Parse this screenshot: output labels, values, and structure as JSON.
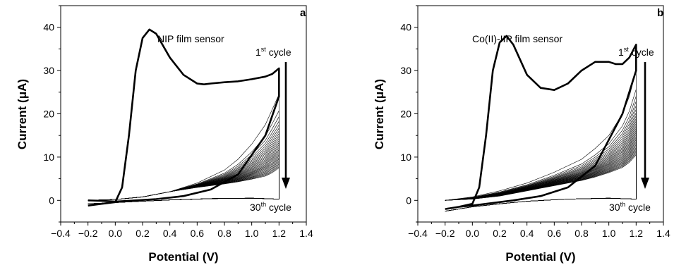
{
  "chart_data": [
    {
      "type": "line",
      "panel_label": "a",
      "title": "NIP film sensor",
      "xlabel": "Potential (V)",
      "ylabel": "Current (μA)",
      "xlim": [
        -0.4,
        1.4
      ],
      "ylim": [
        -5,
        45
      ],
      "x_ticks": [
        "−0.4",
        "−0.2",
        "0.0",
        "0.2",
        "0.4",
        "0.6",
        "0.8",
        "1.0",
        "1.2",
        "1.4"
      ],
      "y_ticks": [
        "0",
        "10",
        "20",
        "30",
        "40"
      ],
      "annotation_top": {
        "number": "1",
        "sup": "st",
        "word": " cycle"
      },
      "annotation_bottom": {
        "number": "30",
        "sup": "th",
        "word": " cycle"
      },
      "cycles": 30,
      "series": [
        {
          "x": [
            -0.2,
            -0.1,
            0.0,
            0.05,
            0.1,
            0.15,
            0.2,
            0.25,
            0.3,
            0.4,
            0.5,
            0.6,
            0.65,
            0.7,
            0.8,
            0.9,
            1.0,
            1.1,
            1.15,
            1.2,
            1.2,
            1.1,
            0.9,
            0.7,
            0.5,
            0.3,
            0.1,
            0.0,
            -0.1,
            -0.2
          ],
          "y": [
            -1.2,
            -0.8,
            -0.4,
            3.0,
            15.0,
            30.0,
            37.5,
            39.5,
            38.5,
            33.0,
            29.0,
            27.0,
            26.8,
            27.0,
            27.3,
            27.5,
            28.0,
            28.6,
            29.2,
            30.5,
            24.0,
            15.0,
            6.0,
            2.5,
            1.0,
            0.3,
            -0.1,
            -0.3,
            -0.1,
            0.0
          ]
        }
      ],
      "repeat_curves": {
        "x": [
          -0.2,
          0.0,
          0.2,
          0.4,
          0.6,
          0.8,
          0.9,
          1.0,
          1.1,
          1.15,
          1.2,
          1.2,
          1.0,
          0.7,
          0.4,
          0.2,
          0.0,
          -0.2
        ],
        "top_peak": [
          0.0,
          0.2,
          0.8,
          2.0,
          4.0,
          7.0,
          9.5,
          13.0,
          17.5,
          21.0,
          24.5
        ],
        "end_peak": [
          0.0,
          0.2,
          0.8,
          2.0,
          3.0,
          3.8,
          4.3,
          4.9,
          5.6,
          6.4,
          7.5
        ],
        "return": [
          0.3,
          0.5,
          0.4,
          0.1,
          -0.2,
          -0.5,
          -0.8
        ]
      }
    },
    {
      "type": "line",
      "panel_label": "b",
      "title": "Co(II)-IIP film sensor",
      "xlabel": "Potential (V)",
      "ylabel": "Current (μA)",
      "xlim": [
        -0.4,
        1.4
      ],
      "ylim": [
        -5,
        45
      ],
      "x_ticks": [
        "−0.4",
        "−0.2",
        "0.0",
        "0.2",
        "0.4",
        "0.6",
        "0.8",
        "1.0",
        "1.2",
        "1.4"
      ],
      "y_ticks": [
        "0",
        "10",
        "20",
        "30",
        "40"
      ],
      "annotation_top": {
        "number": "1",
        "sup": "st",
        "word": " cycle"
      },
      "annotation_bottom": {
        "number": "30",
        "sup": "th",
        "word": " cycle"
      },
      "cycles": 30,
      "series": [
        {
          "x": [
            -0.2,
            -0.1,
            0.0,
            0.05,
            0.1,
            0.15,
            0.2,
            0.25,
            0.3,
            0.4,
            0.5,
            0.6,
            0.7,
            0.8,
            0.9,
            1.0,
            1.05,
            1.1,
            1.15,
            1.2,
            1.2,
            1.1,
            0.9,
            0.7,
            0.5,
            0.3,
            0.1,
            0.0,
            -0.1,
            -0.2
          ],
          "y": [
            -2.0,
            -1.5,
            -0.8,
            3.0,
            15.0,
            30.0,
            36.5,
            38.0,
            36.0,
            29.0,
            26.0,
            25.5,
            27.0,
            30.0,
            32.0,
            32.0,
            31.5,
            31.5,
            33.0,
            36.0,
            30.0,
            20.0,
            8.0,
            3.0,
            1.0,
            0.0,
            -0.8,
            -1.2,
            -1.5,
            -2.0
          ]
        }
      ],
      "repeat_curves": {
        "x": [
          -0.2,
          0.0,
          0.2,
          0.4,
          0.6,
          0.8,
          0.9,
          1.0,
          1.1,
          1.15,
          1.2,
          1.2,
          1.0,
          0.7,
          0.4,
          0.2,
          0.0,
          -0.2
        ],
        "top_peak": [
          0.0,
          0.8,
          2.2,
          4.0,
          6.5,
          9.5,
          12.0,
          15.0,
          20.0,
          24.0,
          30.0
        ],
        "end_peak": [
          0.0,
          0.3,
          1.0,
          2.2,
          3.4,
          4.6,
          5.4,
          6.4,
          7.6,
          8.8,
          10.5
        ],
        "return": [
          0.3,
          0.5,
          0.3,
          -0.2,
          -0.8,
          -1.5,
          -2.5
        ]
      }
    }
  ]
}
